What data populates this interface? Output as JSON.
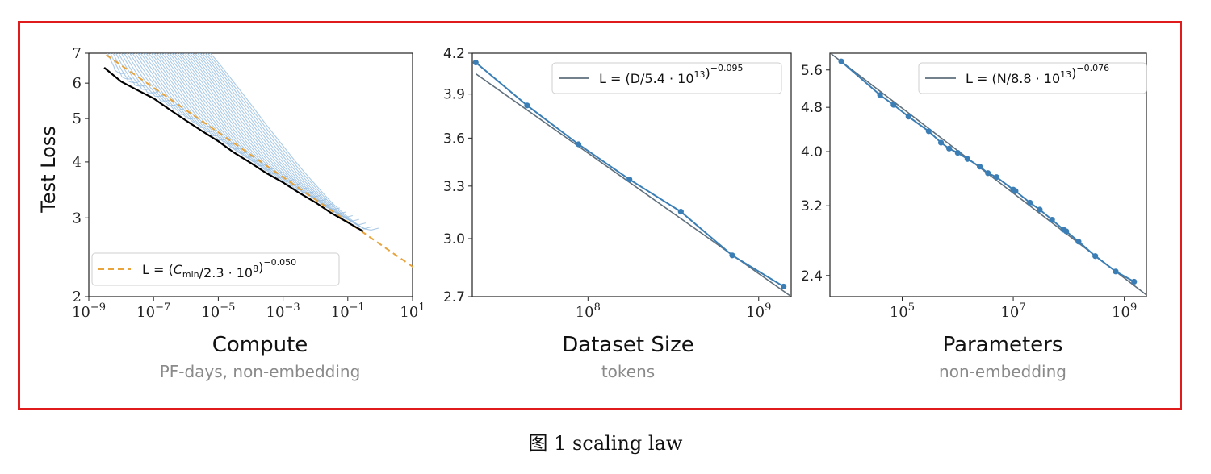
{
  "caption": "图 1 scaling law",
  "chart_data": [
    {
      "type": "line",
      "xscale": "log",
      "yscale": "log",
      "xlim": [
        1e-09,
        10
      ],
      "ylim": [
        2,
        7
      ],
      "xlabel": "Compute",
      "xsublabel": "PF-days, non-embedding",
      "ylabel": "Test Loss",
      "xticks": [
        1e-09,
        1e-07,
        1e-05,
        0.001,
        0.1,
        10
      ],
      "xtick_labels": [
        [
          "10",
          "−9"
        ],
        [
          "10",
          "−7"
        ],
        [
          "10",
          "−5"
        ],
        [
          "10",
          "−3"
        ],
        [
          "10",
          "−1"
        ],
        [
          "10",
          "1"
        ]
      ],
      "yticks": [
        2,
        3,
        4,
        5,
        6,
        7
      ],
      "ytick_labels": [
        "2",
        "3",
        "4",
        "5",
        "6",
        "7"
      ],
      "legend": {
        "label": "L = (Cmin/2.3 · 10^8)^−0.050",
        "position": "lower-left"
      },
      "series": [
        {
          "role": "frontier",
          "color": "#000000",
          "x": [
            3e-09,
            1e-08,
            3e-08,
            1e-07,
            3e-07,
            1e-06,
            3e-06,
            1e-05,
            3e-05,
            0.0001,
            0.0003,
            0.001,
            0.003,
            0.01,
            0.03,
            0.1,
            0.3
          ],
          "y": [
            6.5,
            6.05,
            5.8,
            5.55,
            5.25,
            4.95,
            4.7,
            4.45,
            4.2,
            3.98,
            3.78,
            3.6,
            3.42,
            3.25,
            3.08,
            2.93,
            2.8
          ]
        },
        {
          "role": "fit",
          "color": "#e8a33a",
          "dash": true,
          "formula": {
            "a": 230000000.0,
            "b": 0.05,
            "ymax": 7
          }
        },
        {
          "role": "runs",
          "color": "#8fb8de",
          "count": 40
        }
      ]
    },
    {
      "type": "line",
      "xscale": "log",
      "yscale": "log",
      "xlim": [
        21000000.0,
        1550000000.0
      ],
      "ylim": [
        2.7,
        4.2
      ],
      "xlabel": "Dataset Size",
      "xsublabel": "tokens",
      "xticks": [
        100000000.0,
        1000000000.0
      ],
      "xtick_labels": [
        [
          "10",
          "8"
        ],
        [
          "10",
          "9"
        ]
      ],
      "yticks": [
        2.7,
        3.0,
        3.3,
        3.6,
        3.9,
        4.2
      ],
      "ytick_labels": [
        "2.7",
        "3.0",
        "3.3",
        "3.6",
        "3.9",
        "4.2"
      ],
      "legend": {
        "label": "L = (D/5.4 · 10^13)^−0.095",
        "position": "top-right"
      },
      "series": [
        {
          "role": "data",
          "color": "#3a7eb5",
          "x": [
            22000000.0,
            44000000.0,
            88000000.0,
            175000000.0,
            350000000.0,
            700000000.0,
            1400000000.0
          ],
          "y": [
            4.13,
            3.82,
            3.56,
            3.34,
            3.15,
            2.91,
            2.75
          ]
        },
        {
          "role": "fit",
          "color": "#5f6f7c",
          "formula": {
            "a": 54000000000000.0,
            "b": 0.095
          }
        }
      ]
    },
    {
      "type": "line",
      "xscale": "log",
      "yscale": "log",
      "xlim": [
        5000.0,
        2500000000.0
      ],
      "ylim": [
        2.2,
        6.0
      ],
      "xlabel": "Parameters",
      "xsublabel": "non-embedding",
      "xticks": [
        100000.0,
        10000000.0,
        1000000000.0
      ],
      "xtick_labels": [
        [
          "10",
          "5"
        ],
        [
          "10",
          "7"
        ],
        [
          "10",
          "9"
        ]
      ],
      "yticks": [
        2.4,
        3.2,
        4.0,
        4.8,
        5.6
      ],
      "ytick_labels": [
        "2.4",
        "3.2",
        "4.0",
        "4.8",
        "5.6"
      ],
      "legend": {
        "label": "L = (N/8.8 · 10^13)^−0.076",
        "position": "top-right"
      },
      "series": [
        {
          "role": "data",
          "color": "#3a7eb5",
          "x": [
            8000.0,
            40000.0,
            70000.0,
            130000.0,
            300000.0,
            500000.0,
            700000.0,
            1000000.0,
            1500000.0,
            2500000.0,
            3500000.0,
            5000000.0,
            10000000.0,
            11000000.0,
            20000000.0,
            30000000.0,
            50000000.0,
            80000000.0,
            90000000.0,
            150000000.0,
            300000000.0,
            700000000.0,
            1500000000.0
          ],
          "y": [
            5.8,
            5.05,
            4.85,
            4.62,
            4.35,
            4.15,
            4.05,
            3.98,
            3.88,
            3.76,
            3.66,
            3.6,
            3.42,
            3.4,
            3.24,
            3.15,
            3.02,
            2.9,
            2.88,
            2.76,
            2.6,
            2.44,
            2.34
          ]
        },
        {
          "role": "fit",
          "color": "#5f6f7c",
          "formula": {
            "a": 88000000000000.0,
            "b": 0.076
          }
        }
      ]
    }
  ]
}
